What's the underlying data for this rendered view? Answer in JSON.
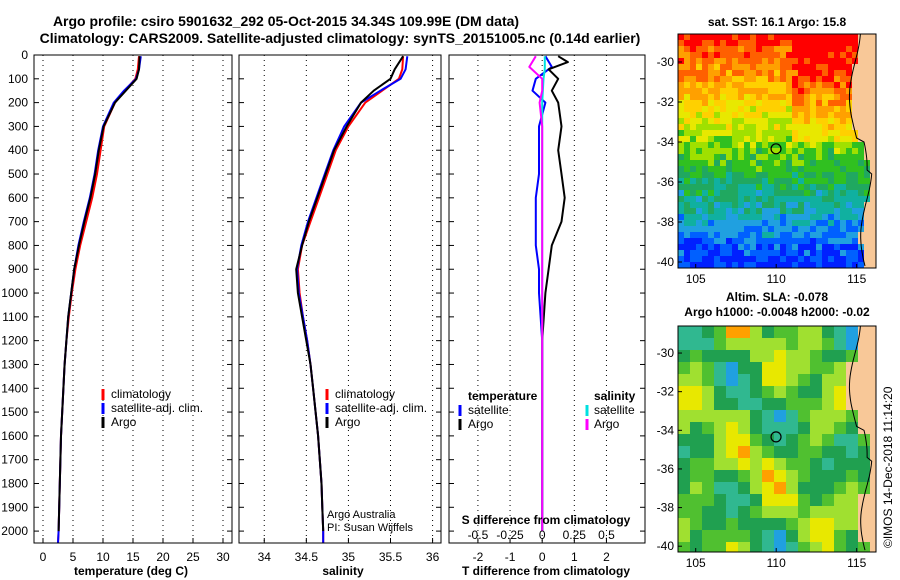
{
  "header": {
    "title_line1": "Argo profile: csiro 5901632_292 05-Oct-2015 34.34S 109.99E (DM data)",
    "title_line2": "Climatology: CARS2009. Satellite-adjusted climatology: synTS_20151005.nc (0.14d earlier)"
  },
  "colors": {
    "climatology": "#ff0000",
    "satellite_adj": "#0000ff",
    "argo": "#000000",
    "satellite_salinity": "#00e0e0",
    "argo_salinity": "#ff00ff",
    "land": "#f8c898"
  },
  "depth_axis": {
    "ticks": [
      "0",
      "100",
      "200",
      "300",
      "400",
      "500",
      "600",
      "700",
      "800",
      "900",
      "1000",
      "1100",
      "1200",
      "1300",
      "1400",
      "1500",
      "1600",
      "1700",
      "1800",
      "1900",
      "2000"
    ],
    "range": [
      0,
      2050
    ],
    "inverted": true
  },
  "chart_data": [
    {
      "id": "temperature",
      "type": "line",
      "xlabel": "temperature (deg C)",
      "xlim": [
        -1.5,
        31.5
      ],
      "xticks": [
        "0",
        "5",
        "10",
        "15",
        "20",
        "25",
        "30"
      ],
      "grid": true,
      "legend": {
        "placement": "lower-middle",
        "items": [
          "climatology",
          "satellite-adj. clim.",
          "Argo"
        ]
      },
      "series": [
        {
          "name": "climatology",
          "color": "#ff0000",
          "depth": [
            5,
            60,
            100,
            150,
            200,
            300,
            400,
            500,
            600,
            700,
            800,
            900,
            1000,
            1100,
            1200,
            1300,
            1400,
            1500,
            1600,
            1700,
            1800,
            1900,
            2000,
            2050
          ],
          "values": [
            16.0,
            15.8,
            15.4,
            13.6,
            12.0,
            10.2,
            9.6,
            9.0,
            8.2,
            7.2,
            6.2,
            5.4,
            4.8,
            4.3,
            3.9,
            3.6,
            3.4,
            3.2,
            3.0,
            2.9,
            2.8,
            2.7,
            2.6,
            2.5
          ]
        },
        {
          "name": "satellite-adj. clim.",
          "color": "#0000ff",
          "depth": [
            5,
            60,
            100,
            150,
            200,
            300,
            400,
            500,
            600,
            700,
            800,
            900,
            1000,
            1100,
            1200,
            1300,
            1400,
            1500,
            1600,
            1700,
            1800,
            1900,
            2000,
            2050
          ],
          "values": [
            16.3,
            16.0,
            15.5,
            13.5,
            11.8,
            10.0,
            9.2,
            8.6,
            7.8,
            6.8,
            5.9,
            5.2,
            4.7,
            4.2,
            3.9,
            3.6,
            3.4,
            3.2,
            3.0,
            2.9,
            2.8,
            2.7,
            2.6,
            2.5
          ]
        },
        {
          "name": "Argo",
          "color": "#000000",
          "depth": [
            5,
            60,
            100,
            150,
            200,
            300,
            400,
            500,
            600,
            700,
            800,
            900,
            1000,
            1100,
            1200,
            1300,
            1400,
            1500,
            1600,
            1700,
            1800,
            1900,
            2000
          ],
          "values": [
            16.1,
            16.0,
            15.6,
            13.8,
            12.0,
            10.1,
            9.3,
            8.7,
            7.9,
            6.9,
            6.0,
            5.2,
            4.7,
            4.2,
            3.9,
            3.6,
            3.4,
            3.2,
            3.0,
            2.9,
            2.8,
            2.7,
            2.6
          ]
        }
      ]
    },
    {
      "id": "salinity",
      "type": "line",
      "xlabel": "salinity",
      "xlim": [
        33.7,
        36.1
      ],
      "xticks": [
        "34",
        "34.5",
        "35",
        "35.5",
        "36"
      ],
      "grid": true,
      "legend": {
        "placement": "lower-middle",
        "items": [
          "climatology",
          "satellite-adj. clim.",
          "Argo"
        ]
      },
      "credits": [
        "Argo Australia",
        "PI: Susan Wijffels"
      ],
      "series": [
        {
          "name": "climatology",
          "color": "#ff0000",
          "depth": [
            5,
            60,
            100,
            150,
            200,
            300,
            400,
            500,
            600,
            700,
            800,
            900,
            1000,
            1100,
            1200,
            1300,
            1400,
            1500,
            1600,
            1700,
            1800,
            1900,
            2000,
            2050
          ],
          "values": [
            35.65,
            35.64,
            35.6,
            35.4,
            35.2,
            35.0,
            34.85,
            34.75,
            34.65,
            34.55,
            34.45,
            34.4,
            34.42,
            34.46,
            34.51,
            34.55,
            34.58,
            34.61,
            34.64,
            34.66,
            34.68,
            34.69,
            34.7,
            34.7
          ]
        },
        {
          "name": "satellite-adj. clim.",
          "color": "#0000ff",
          "depth": [
            5,
            60,
            100,
            150,
            200,
            300,
            400,
            500,
            600,
            700,
            800,
            900,
            1000,
            1100,
            1200,
            1300,
            1400,
            1500,
            1600,
            1700,
            1800,
            1900,
            2000,
            2050
          ],
          "values": [
            35.7,
            35.68,
            35.62,
            35.38,
            35.15,
            34.95,
            34.82,
            34.72,
            34.62,
            34.52,
            34.44,
            34.39,
            34.41,
            34.46,
            34.51,
            34.55,
            34.58,
            34.61,
            34.64,
            34.66,
            34.68,
            34.69,
            34.7,
            34.7
          ]
        },
        {
          "name": "Argo",
          "color": "#000000",
          "depth": [
            5,
            60,
            100,
            150,
            200,
            300,
            400,
            500,
            600,
            700,
            800,
            900,
            1000,
            1100,
            1200,
            1300,
            1400,
            1500,
            1600,
            1700,
            1800,
            1900,
            2000
          ],
          "values": [
            35.65,
            35.55,
            35.5,
            35.3,
            35.15,
            34.98,
            34.83,
            34.73,
            34.63,
            34.53,
            34.45,
            34.38,
            34.4,
            34.45,
            34.5,
            34.55,
            34.58,
            34.61,
            34.64,
            34.66,
            34.68,
            34.69,
            34.7
          ]
        }
      ]
    },
    {
      "id": "difference",
      "type": "line",
      "xlabel": "T difference from climatology",
      "xlabel_top": "S difference from climatology",
      "xlim": [
        -2.9,
        3.2
      ],
      "xticks": [
        "-2",
        "-1",
        "0",
        "1",
        "2"
      ],
      "xticks_top": [
        "-0.5",
        "-0.25",
        "0",
        "0.25",
        "0.5"
      ],
      "grid": true,
      "legend_left": {
        "title": "temperature",
        "items": [
          "satellite",
          "Argo"
        ]
      },
      "legend_right": {
        "title": "salinity",
        "items": [
          "satellite",
          "Argo"
        ]
      },
      "series": [
        {
          "name": "temperature satellite",
          "color": "#0000ff",
          "depth": [
            5,
            50,
            100,
            150,
            200,
            300,
            400,
            500,
            600,
            700,
            800,
            900,
            1000,
            1200,
            1500,
            2000
          ],
          "values": [
            0.1,
            0.3,
            -0.2,
            -0.3,
            0.1,
            -0.1,
            -0.1,
            -0.1,
            -0.2,
            -0.2,
            -0.2,
            -0.1,
            -0.1,
            0,
            0,
            0
          ]
        },
        {
          "name": "temperature Argo",
          "color": "#000000",
          "depth": [
            5,
            30,
            60,
            100,
            150,
            200,
            300,
            400,
            500,
            600,
            700,
            800,
            900,
            1000,
            1200,
            1500,
            2000
          ],
          "values": [
            0.5,
            0.8,
            0.2,
            0.5,
            0.3,
            0.5,
            0.6,
            0.5,
            0.6,
            0.7,
            0.6,
            0.3,
            0.2,
            0.1,
            0,
            0,
            0
          ]
        },
        {
          "name": "salinity satellite",
          "color": "#00e0e0",
          "depth": [
            5,
            60,
            100,
            200,
            300,
            500,
            800,
            1000,
            1500,
            2000
          ],
          "values": [
            0.02,
            0.02,
            0.01,
            0.0,
            0.0,
            0.0,
            0.0,
            0.0,
            0.0,
            0.0
          ]
        },
        {
          "name": "salinity Argo",
          "color": "#ff00ff",
          "depth": [
            5,
            50,
            100,
            150,
            200,
            300,
            400,
            600,
            800,
            1000,
            1500,
            2000
          ],
          "values": [
            -0.05,
            -0.1,
            0.0,
            0.0,
            -0.02,
            0.0,
            0.0,
            0.0,
            0.0,
            0.0,
            0.0,
            0.0
          ]
        }
      ]
    },
    {
      "id": "sst_map",
      "type": "heatmap",
      "title": "sat. SST: 16.1  Argo: 15.8",
      "xticks": [
        "105",
        "110",
        "115"
      ],
      "yticks": [
        "-30",
        "-32",
        "-34",
        "-36",
        "-38",
        "-40"
      ],
      "xlim": [
        103.9,
        116.2
      ],
      "ylim": [
        -40.3,
        -28.6
      ],
      "marker": {
        "lon": 109.99,
        "lat": -34.34
      }
    },
    {
      "id": "sla_map",
      "type": "heatmap",
      "title_line1": "Altim. SLA: -0.078",
      "title_line2": "Argo h1000: -0.0048 h2000: -0.02",
      "xticks": [
        "105",
        "110",
        "115"
      ],
      "yticks": [
        "-30",
        "-32",
        "-34",
        "-36",
        "-38",
        "-40"
      ],
      "xlim": [
        103.9,
        116.2
      ],
      "ylim": [
        -40.3,
        -28.6
      ],
      "marker": {
        "lon": 109.99,
        "lat": -34.34
      }
    }
  ],
  "footer": {
    "stamp": "©IMOS 14-Dec-2018 11:14:20"
  }
}
